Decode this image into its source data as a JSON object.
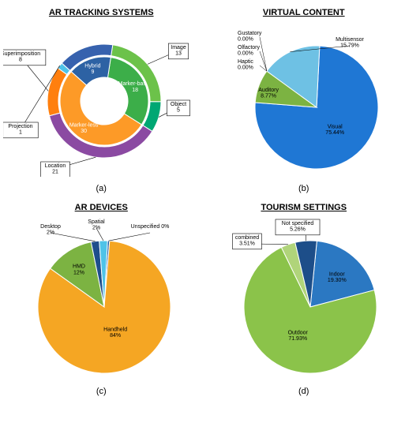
{
  "panelA": {
    "title": "AR TRACKING SYSTEMS",
    "caption": "(a)",
    "outer": {
      "slices": [
        {
          "label": "Marker-based",
          "value": 18,
          "color": "#3cae49"
        },
        {
          "label": "Marker-less",
          "value": 30,
          "color": "#fd9a27"
        },
        {
          "label": "Hybrid",
          "value": 9,
          "color": "#2d62a4"
        }
      ]
    },
    "inner": {
      "slices": [
        {
          "label": "Image",
          "value": 13,
          "color": "#6cc24a"
        },
        {
          "label": "Object",
          "value": 5,
          "color": "#00a773"
        },
        {
          "label": "Location",
          "value": 21,
          "color": "#8b4aa2"
        },
        {
          "label": "Superimposition",
          "value": 8,
          "color": "#ff7f0e"
        },
        {
          "label": "Projection",
          "value": 1,
          "color": "#4fc3e8"
        },
        {
          "label": "Hybrid_inner",
          "value": 9,
          "color": "#3762ae"
        }
      ]
    },
    "hole_color": "#ffffff"
  },
  "panelB": {
    "title": "VIRTUAL CONTENT",
    "caption": "(b)",
    "slices": [
      {
        "label": "Visual",
        "value": 75.44,
        "color": "#1f77d4",
        "text": "Visual\n75.44%"
      },
      {
        "label": "Auditory",
        "value": 8.77,
        "color": "#7cb342",
        "text": "Auditory\n8.77%"
      },
      {
        "label": "Multisensor",
        "value": 15.79,
        "color": "#6ec1e4",
        "text": "Multisensor\n15.79%"
      }
    ],
    "zero_labels": [
      "Gustatory\n0.00%",
      "Olfactory\n0.00%",
      "Haptic\n0.00%"
    ]
  },
  "panelC": {
    "title": "AR DEVICES",
    "caption": "(c)",
    "slices": [
      {
        "label": "Unspecified",
        "value": 0.5,
        "color": "#1f5fa8",
        "text": "Unspecified  0%"
      },
      {
        "label": "Handheld",
        "value": 84,
        "color": "#f5a623",
        "text": "Handheld\n84%"
      },
      {
        "label": "HMD",
        "value": 12,
        "color": "#7cb342",
        "text": "HMD\n12%"
      },
      {
        "label": "Desktop",
        "value": 2,
        "color": "#1e4e8c",
        "text": "Desktop\n2%"
      },
      {
        "label": "Spatial",
        "value": 2,
        "color": "#4fc3e8",
        "text": "Spatial\n2%"
      }
    ]
  },
  "panelD": {
    "title": "TOURISM SETTINGS",
    "caption": "(d)",
    "slices": [
      {
        "label": "Indoor",
        "value": 19.3,
        "color": "#2b78c2",
        "text": "Indoor\n19.30%"
      },
      {
        "label": "Outdoor",
        "value": 71.93,
        "color": "#8bc34a",
        "text": "Outdoor\n71.93%"
      },
      {
        "label": "combined",
        "value": 3.51,
        "color": "#b0d47a",
        "text": "combined\n3.51%"
      },
      {
        "label": "Not specified",
        "value": 5.26,
        "color": "#1d4e89",
        "text": "Not specified\n5.26%"
      }
    ]
  },
  "stroke_color": "#ffffff",
  "label_fontsize": 7
}
